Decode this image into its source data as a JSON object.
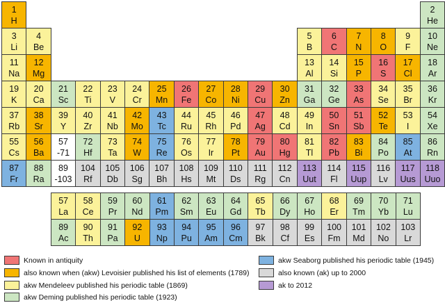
{
  "colors": {
    "antiquity": "#f07575",
    "lavoisier": "#f7b500",
    "mendeleev": "#fbf29a",
    "deming": "#cce6c2",
    "seaborg": "#7eb2e0",
    "up_to_2000": "#d9d9d9",
    "to_2012": "#b69ad4",
    "blank": "#ffffff"
  },
  "elements": [
    [
      "1",
      "H",
      "lavoisier",
      1,
      1
    ],
    [
      "2",
      "He",
      "deming",
      1,
      18
    ],
    [
      "3",
      "Li",
      "mendeleev",
      2,
      1
    ],
    [
      "4",
      "Be",
      "mendeleev",
      2,
      2
    ],
    [
      "5",
      "B",
      "mendeleev",
      2,
      13
    ],
    [
      "6",
      "C",
      "antiquity",
      2,
      14
    ],
    [
      "7",
      "N",
      "lavoisier",
      2,
      15
    ],
    [
      "8",
      "O",
      "lavoisier",
      2,
      16
    ],
    [
      "9",
      "F",
      "mendeleev",
      2,
      17
    ],
    [
      "10",
      "Ne",
      "deming",
      2,
      18
    ],
    [
      "11",
      "Na",
      "mendeleev",
      3,
      1
    ],
    [
      "12",
      "Mg",
      "lavoisier",
      3,
      2
    ],
    [
      "13",
      "Al",
      "mendeleev",
      3,
      13
    ],
    [
      "14",
      "Si",
      "mendeleev",
      3,
      14
    ],
    [
      "15",
      "P",
      "lavoisier",
      3,
      15
    ],
    [
      "16",
      "S",
      "antiquity",
      3,
      16
    ],
    [
      "17",
      "Cl",
      "lavoisier",
      3,
      17
    ],
    [
      "18",
      "Ar",
      "deming",
      3,
      18
    ],
    [
      "19",
      "K",
      "mendeleev",
      4,
      1
    ],
    [
      "20",
      "Ca",
      "mendeleev",
      4,
      2
    ],
    [
      "21",
      "Sc",
      "deming",
      4,
      3
    ],
    [
      "22",
      "Ti",
      "mendeleev",
      4,
      4
    ],
    [
      "23",
      "V",
      "mendeleev",
      4,
      5
    ],
    [
      "24",
      "Cr",
      "mendeleev",
      4,
      6
    ],
    [
      "25",
      "Mn",
      "lavoisier",
      4,
      7
    ],
    [
      "26",
      "Fe",
      "antiquity",
      4,
      8
    ],
    [
      "27",
      "Co",
      "lavoisier",
      4,
      9
    ],
    [
      "28",
      "Ni",
      "lavoisier",
      4,
      10
    ],
    [
      "29",
      "Cu",
      "antiquity",
      4,
      11
    ],
    [
      "30",
      "Zn",
      "lavoisier",
      4,
      12
    ],
    [
      "31",
      "Ga",
      "deming",
      4,
      13
    ],
    [
      "32",
      "Ge",
      "deming",
      4,
      14
    ],
    [
      "33",
      "As",
      "antiquity",
      4,
      15
    ],
    [
      "34",
      "Se",
      "mendeleev",
      4,
      16
    ],
    [
      "35",
      "Br",
      "mendeleev",
      4,
      17
    ],
    [
      "36",
      "Kr",
      "deming",
      4,
      18
    ],
    [
      "37",
      "Rb",
      "mendeleev",
      5,
      1
    ],
    [
      "38",
      "Sr",
      "lavoisier",
      5,
      2
    ],
    [
      "39",
      "Y",
      "mendeleev",
      5,
      3
    ],
    [
      "40",
      "Zr",
      "mendeleev",
      5,
      4
    ],
    [
      "41",
      "Nb",
      "mendeleev",
      5,
      5
    ],
    [
      "42",
      "Mo",
      "lavoisier",
      5,
      6
    ],
    [
      "43",
      "Tc",
      "seaborg",
      5,
      7
    ],
    [
      "44",
      "Ru",
      "mendeleev",
      5,
      8
    ],
    [
      "45",
      "Rh",
      "mendeleev",
      5,
      9
    ],
    [
      "46",
      "Pd",
      "mendeleev",
      5,
      10
    ],
    [
      "47",
      "Ag",
      "antiquity",
      5,
      11
    ],
    [
      "48",
      "Cd",
      "mendeleev",
      5,
      12
    ],
    [
      "49",
      "In",
      "mendeleev",
      5,
      13
    ],
    [
      "50",
      "Sn",
      "antiquity",
      5,
      14
    ],
    [
      "51",
      "Sb",
      "antiquity",
      5,
      15
    ],
    [
      "52",
      "Te",
      "lavoisier",
      5,
      16
    ],
    [
      "53",
      "I",
      "mendeleev",
      5,
      17
    ],
    [
      "54",
      "Xe",
      "deming",
      5,
      18
    ],
    [
      "55",
      "Cs",
      "mendeleev",
      6,
      1
    ],
    [
      "56",
      "Ba",
      "lavoisier",
      6,
      2
    ],
    [
      "57\n-71",
      "",
      "blank",
      6,
      3
    ],
    [
      "72",
      "Hf",
      "deming",
      6,
      4
    ],
    [
      "73",
      "Ta",
      "mendeleev",
      6,
      5
    ],
    [
      "74",
      "W",
      "lavoisier",
      6,
      6
    ],
    [
      "75",
      "Re",
      "seaborg",
      6,
      7
    ],
    [
      "76",
      "Os",
      "mendeleev",
      6,
      8
    ],
    [
      "77",
      "Ir",
      "mendeleev",
      6,
      9
    ],
    [
      "78",
      "Pt",
      "lavoisier",
      6,
      10
    ],
    [
      "79",
      "Au",
      "antiquity",
      6,
      11
    ],
    [
      "80",
      "Hg",
      "antiquity",
      6,
      12
    ],
    [
      "81",
      "Tl",
      "mendeleev",
      6,
      13
    ],
    [
      "82",
      "Pb",
      "antiquity",
      6,
      14
    ],
    [
      "83",
      "Bi",
      "lavoisier",
      6,
      15
    ],
    [
      "84",
      "Po",
      "deming",
      6,
      16
    ],
    [
      "85",
      "At",
      "seaborg",
      6,
      17
    ],
    [
      "86",
      "Rn",
      "deming",
      6,
      18
    ],
    [
      "87",
      "Fr",
      "seaborg",
      7,
      1
    ],
    [
      "88",
      "Ra",
      "deming",
      7,
      2
    ],
    [
      "89\n-103",
      "",
      "blank",
      7,
      3
    ],
    [
      "104",
      "Rf",
      "up_to_2000",
      7,
      4
    ],
    [
      "105",
      "Db",
      "up_to_2000",
      7,
      5
    ],
    [
      "106",
      "Sg",
      "up_to_2000",
      7,
      6
    ],
    [
      "107",
      "Bh",
      "up_to_2000",
      7,
      7
    ],
    [
      "108",
      "Hs",
      "up_to_2000",
      7,
      8
    ],
    [
      "109",
      "Mt",
      "up_to_2000",
      7,
      9
    ],
    [
      "110",
      "Ds",
      "up_to_2000",
      7,
      10
    ],
    [
      "111",
      "Rg",
      "up_to_2000",
      7,
      11
    ],
    [
      "112",
      "Cn",
      "up_to_2000",
      7,
      12
    ],
    [
      "113",
      "Uut",
      "to_2012",
      7,
      13
    ],
    [
      "114",
      "Fl",
      "up_to_2000",
      7,
      14
    ],
    [
      "115",
      "Uup",
      "to_2012",
      7,
      15
    ],
    [
      "116",
      "Lv",
      "up_to_2000",
      7,
      16
    ],
    [
      "117",
      "Uus",
      "to_2012",
      7,
      17
    ],
    [
      "118",
      "Uuo",
      "to_2012",
      7,
      18
    ]
  ],
  "series": [
    [
      "57",
      "La",
      "mendeleev",
      1,
      1
    ],
    [
      "58",
      "Ce",
      "mendeleev",
      1,
      2
    ],
    [
      "59",
      "Pr",
      "deming",
      1,
      3
    ],
    [
      "60",
      "Nd",
      "deming",
      1,
      4
    ],
    [
      "61",
      "Pm",
      "seaborg",
      1,
      5
    ],
    [
      "62",
      "Sm",
      "deming",
      1,
      6
    ],
    [
      "63",
      "Eu",
      "deming",
      1,
      7
    ],
    [
      "64",
      "Gd",
      "deming",
      1,
      8
    ],
    [
      "65",
      "Tb",
      "mendeleev",
      1,
      9
    ],
    [
      "66",
      "Dy",
      "deming",
      1,
      10
    ],
    [
      "67",
      "Ho",
      "deming",
      1,
      11
    ],
    [
      "68",
      "Er",
      "mendeleev",
      1,
      12
    ],
    [
      "69",
      "Tm",
      "deming",
      1,
      13
    ],
    [
      "70",
      "Yb",
      "deming",
      1,
      14
    ],
    [
      "71",
      "Lu",
      "deming",
      1,
      15
    ],
    [
      "89",
      "Ac",
      "deming",
      2,
      1
    ],
    [
      "90",
      "Th",
      "mendeleev",
      2,
      2
    ],
    [
      "91",
      "Pa",
      "deming",
      2,
      3
    ],
    [
      "92",
      "U",
      "lavoisier",
      2,
      4
    ],
    [
      "93",
      "Np",
      "seaborg",
      2,
      5
    ],
    [
      "94",
      "Pu",
      "seaborg",
      2,
      6
    ],
    [
      "95",
      "Am",
      "seaborg",
      2,
      7
    ],
    [
      "96",
      "Cm",
      "seaborg",
      2,
      8
    ],
    [
      "97",
      "Bk",
      "up_to_2000",
      2,
      9
    ],
    [
      "98",
      "Cf",
      "up_to_2000",
      2,
      10
    ],
    [
      "99",
      "Es",
      "up_to_2000",
      2,
      11
    ],
    [
      "100",
      "Fm",
      "up_to_2000",
      2,
      12
    ],
    [
      "101",
      "Md",
      "up_to_2000",
      2,
      13
    ],
    [
      "102",
      "No",
      "up_to_2000",
      2,
      14
    ],
    [
      "103",
      "Lr",
      "up_to_2000",
      2,
      15
    ]
  ],
  "legend": {
    "antiquity": "Known in antiquity",
    "lavoisier": "also known when (akw) Levoisier published his list of elements (1789)",
    "mendeleev": "akw Mendeleev published his periodic table (1869)",
    "deming": "akw Deming published his periodic table (1923)",
    "seaborg": "akw Seaborg published his periodic table (1945)",
    "up_to_2000": "also known (ak) up to 2000",
    "to_2012": "ak to 2012"
  }
}
